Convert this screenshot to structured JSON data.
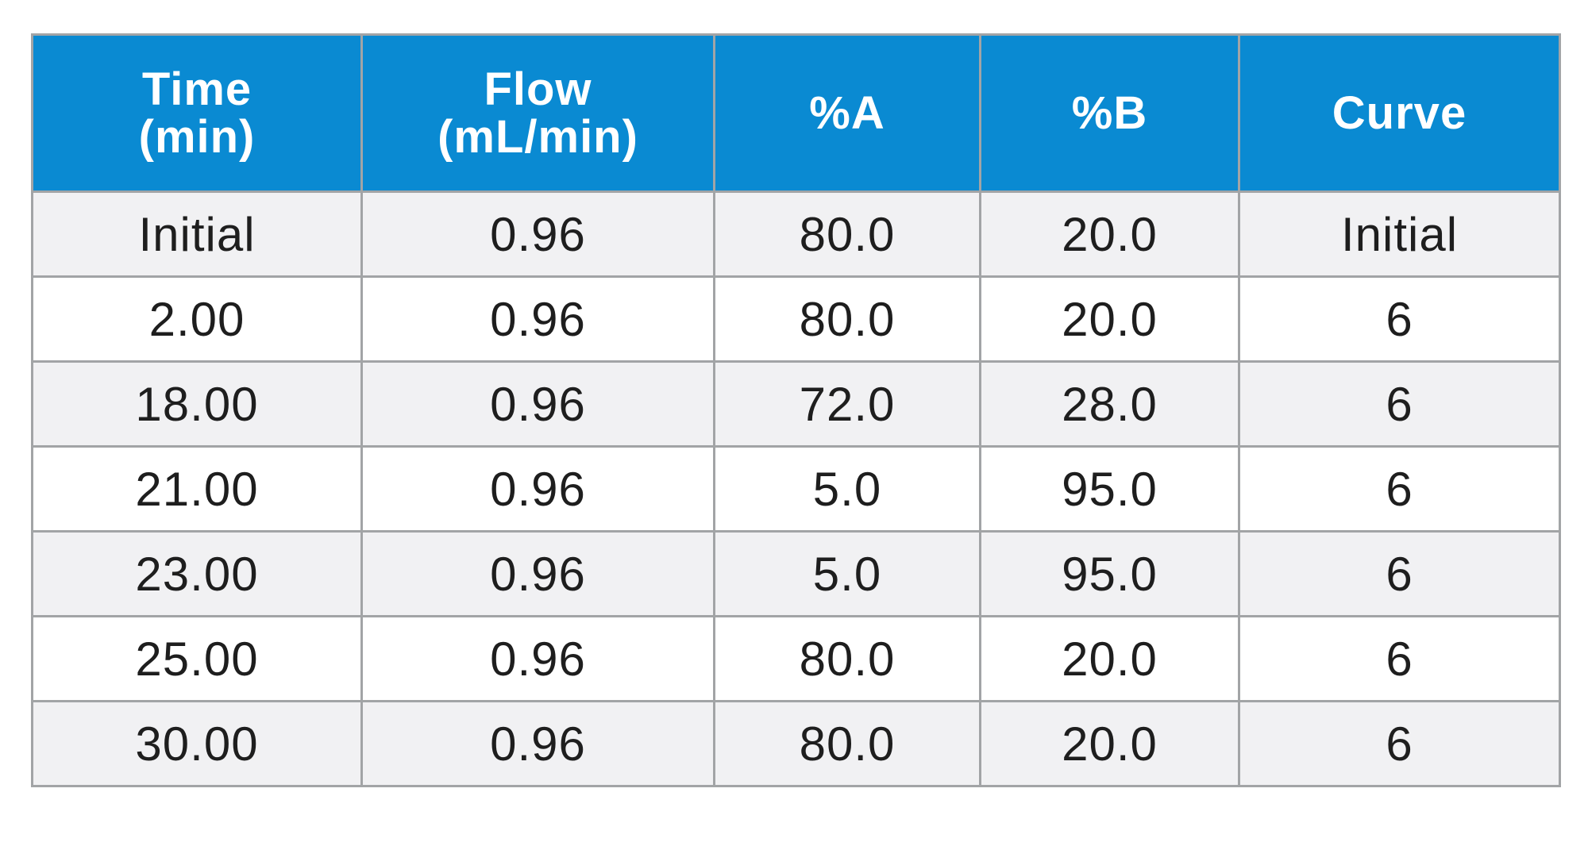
{
  "table": {
    "header": {
      "time": [
        "Time",
        "(min)"
      ],
      "flow": [
        "Flow",
        "(mL/min)"
      ],
      "pct_a": [
        "%A"
      ],
      "pct_b": [
        "%B"
      ],
      "curve": [
        "Curve"
      ]
    },
    "rows": [
      [
        "Initial",
        "0.96",
        "80.0",
        "20.0",
        "Initial"
      ],
      [
        "2.00",
        "0.96",
        "80.0",
        "20.0",
        "6"
      ],
      [
        "18.00",
        "0.96",
        "72.0",
        "28.0",
        "6"
      ],
      [
        "21.00",
        "0.96",
        "5.0",
        "95.0",
        "6"
      ],
      [
        "23.00",
        "0.96",
        "5.0",
        "95.0",
        "6"
      ],
      [
        "25.00",
        "0.96",
        "80.0",
        "20.0",
        "6"
      ],
      [
        "30.00",
        "0.96",
        "80.0",
        "20.0",
        "6"
      ]
    ]
  },
  "colors": {
    "header_bg": "#0a8ad2",
    "header_text": "#ffffff",
    "stripe_bg": "#f1f1f3",
    "row_bg": "#ffffff",
    "border": "#a2a4a6",
    "cell_text": "#1e1e1e"
  }
}
